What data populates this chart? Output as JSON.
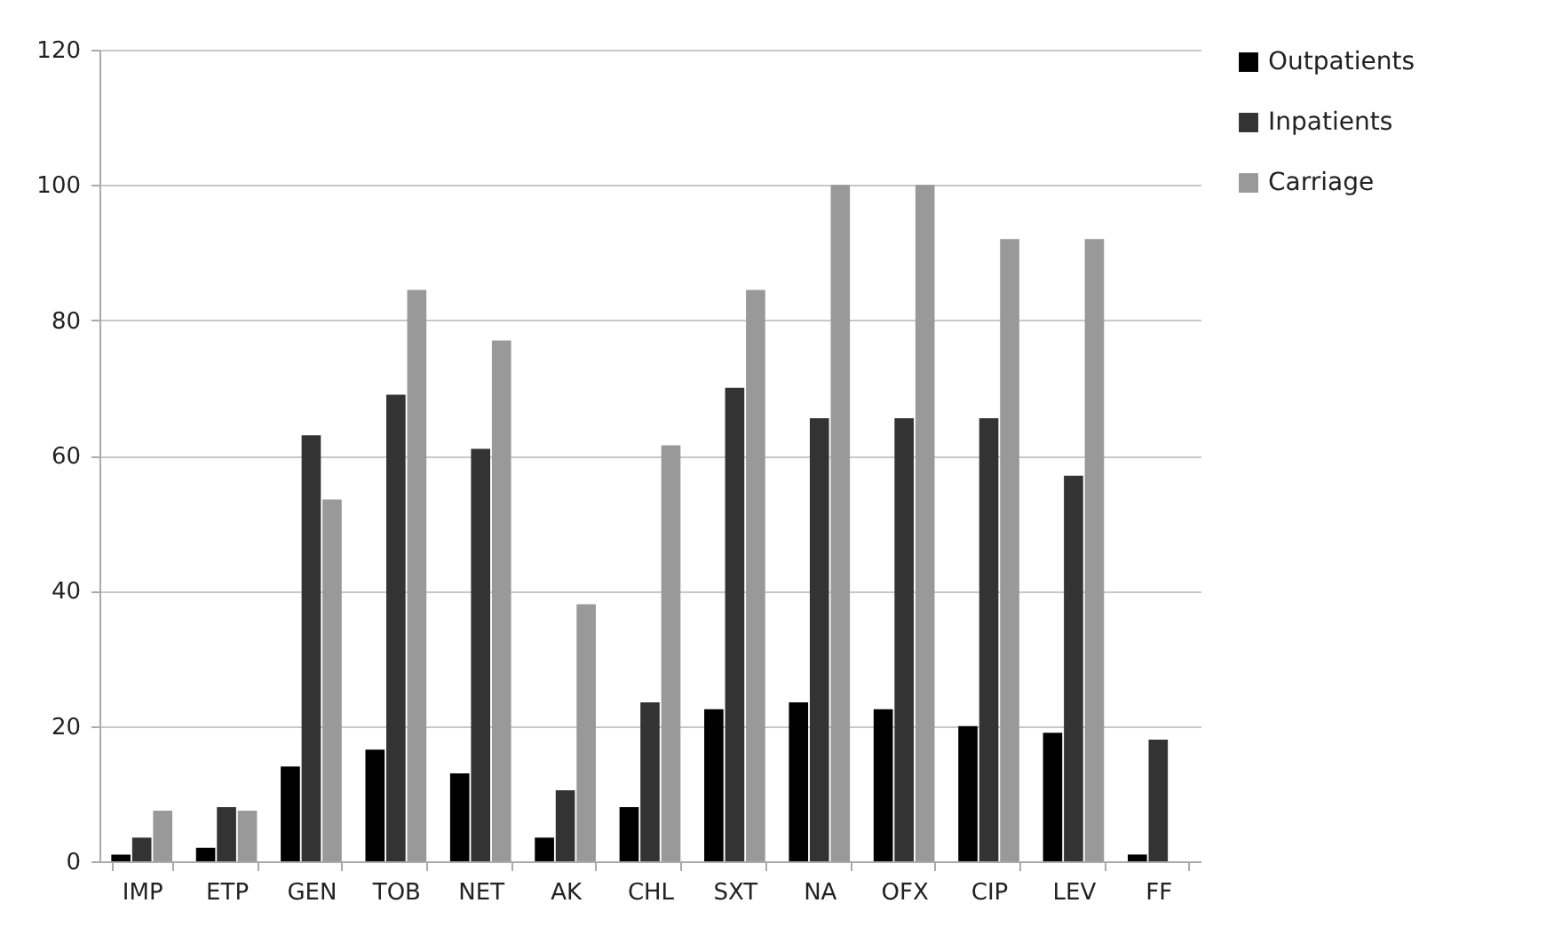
{
  "chart_data": {
    "type": "bar",
    "categories": [
      "IMP",
      "ETP",
      "GEN",
      "TOB",
      "NET",
      "AK",
      "CHL",
      "SXT",
      "NA",
      "OFX",
      "CIP",
      "LEV",
      "FF"
    ],
    "series": [
      {
        "name": "Outpatients",
        "color": "#000000",
        "values": [
          1,
          2,
          14,
          16.5,
          13,
          3.5,
          8,
          22.5,
          23.5,
          22.5,
          20,
          19,
          1
        ]
      },
      {
        "name": "Inpatients",
        "color": "#333333",
        "values": [
          3.5,
          8,
          63,
          69,
          61,
          10.5,
          23.5,
          70,
          65.5,
          65.5,
          65.5,
          57,
          18
        ]
      },
      {
        "name": "Carriage",
        "color": "#999999",
        "values": [
          7.5,
          7.5,
          53.5,
          84.5,
          77,
          38,
          61.5,
          84.5,
          100,
          100,
          92,
          92,
          null
        ]
      }
    ],
    "ylim": [
      0,
      120
    ],
    "yticks": [
      0,
      20,
      40,
      60,
      80,
      100,
      120
    ],
    "grid": "y",
    "legend": "right"
  }
}
